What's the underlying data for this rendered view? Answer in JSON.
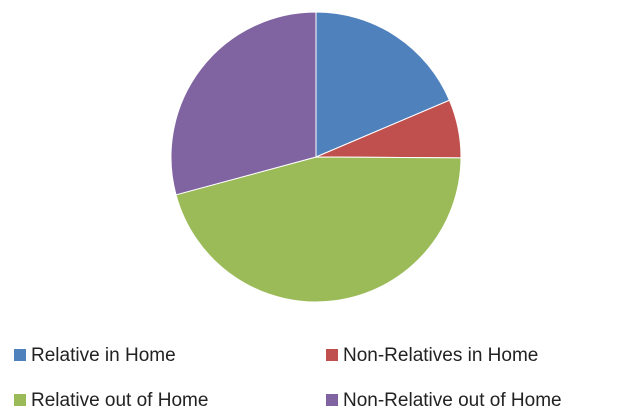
{
  "chart_data": {
    "type": "pie",
    "categories": [
      "Relative in Home",
      "Non-Relatives in Home",
      "Relative out of Home",
      "Non-Relative out of Home"
    ],
    "values": [
      18.6,
      6.5,
      45.7,
      29.2
    ],
    "colors": [
      "#4f81bd",
      "#c0504d",
      "#9bbb59",
      "#8064a2"
    ],
    "legend": "bottom"
  }
}
